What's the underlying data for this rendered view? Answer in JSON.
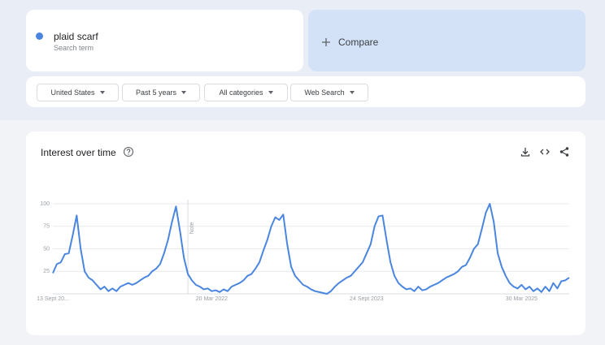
{
  "search": {
    "term": "plaid scarf",
    "subtitle": "Search term"
  },
  "compare": "Compare",
  "filters": [
    "United States",
    "Past 5 years",
    "All categories",
    "Web Search"
  ],
  "chart_data": {
    "type": "line",
    "title": "Interest over time",
    "color": "#4a86e0",
    "categories": [
      "13 Sept 20...",
      null,
      null,
      null,
      null,
      null,
      null,
      null,
      null,
      null,
      null,
      null,
      null,
      null,
      null,
      null,
      null,
      null,
      null,
      null,
      null,
      null,
      null,
      null,
      null,
      null,
      null,
      null,
      null,
      null,
      null,
      null,
      null,
      null,
      null,
      null,
      null,
      null,
      null,
      null,
      "20 Mar 2022",
      null,
      null,
      null,
      null,
      null,
      null,
      null,
      null,
      null,
      null,
      null,
      null,
      null,
      null,
      null,
      null,
      null,
      null,
      null,
      null,
      null,
      null,
      null,
      null,
      null,
      null,
      null,
      null,
      null,
      null,
      null,
      null,
      null,
      null,
      null,
      null,
      null,
      null,
      "24 Sept 2023",
      null,
      null,
      null,
      null,
      null,
      null,
      null,
      null,
      null,
      null,
      null,
      null,
      null,
      null,
      null,
      null,
      null,
      null,
      null,
      null,
      null,
      null,
      null,
      null,
      null,
      null,
      null,
      null,
      null,
      null,
      null,
      null,
      null,
      null,
      null,
      null,
      null,
      null,
      "30 Mar 2025",
      null,
      null,
      null,
      null,
      null,
      null,
      null,
      null,
      null,
      null,
      null,
      null
    ],
    "values": [
      23,
      33,
      35,
      44,
      45,
      65,
      87,
      50,
      25,
      18,
      15,
      10,
      5,
      8,
      3,
      6,
      3,
      8,
      10,
      12,
      10,
      12,
      15,
      18,
      20,
      25,
      28,
      33,
      45,
      60,
      80,
      97,
      70,
      40,
      22,
      15,
      10,
      8,
      5,
      6,
      3,
      4,
      2,
      5,
      3,
      8,
      10,
      12,
      15,
      20,
      22,
      28,
      35,
      48,
      60,
      75,
      85,
      82,
      88,
      55,
      30,
      20,
      15,
      10,
      8,
      5,
      3,
      2,
      1,
      0,
      3,
      8,
      12,
      15,
      18,
      20,
      25,
      30,
      35,
      45,
      55,
      75,
      86,
      87,
      60,
      35,
      20,
      12,
      8,
      5,
      6,
      3,
      8,
      4,
      5,
      8,
      10,
      12,
      15,
      18,
      20,
      22,
      25,
      30,
      32,
      40,
      50,
      55,
      72,
      90,
      100,
      80,
      45,
      30,
      20,
      12,
      8,
      6,
      10,
      5,
      8,
      3,
      6,
      2,
      8,
      3,
      12,
      6,
      14,
      15,
      18
    ],
    "ylim": [
      0,
      100
    ],
    "yticks": [
      25,
      50,
      75,
      100
    ],
    "grid": true,
    "annotations": [
      {
        "text": "Note",
        "index": 34
      }
    ]
  }
}
